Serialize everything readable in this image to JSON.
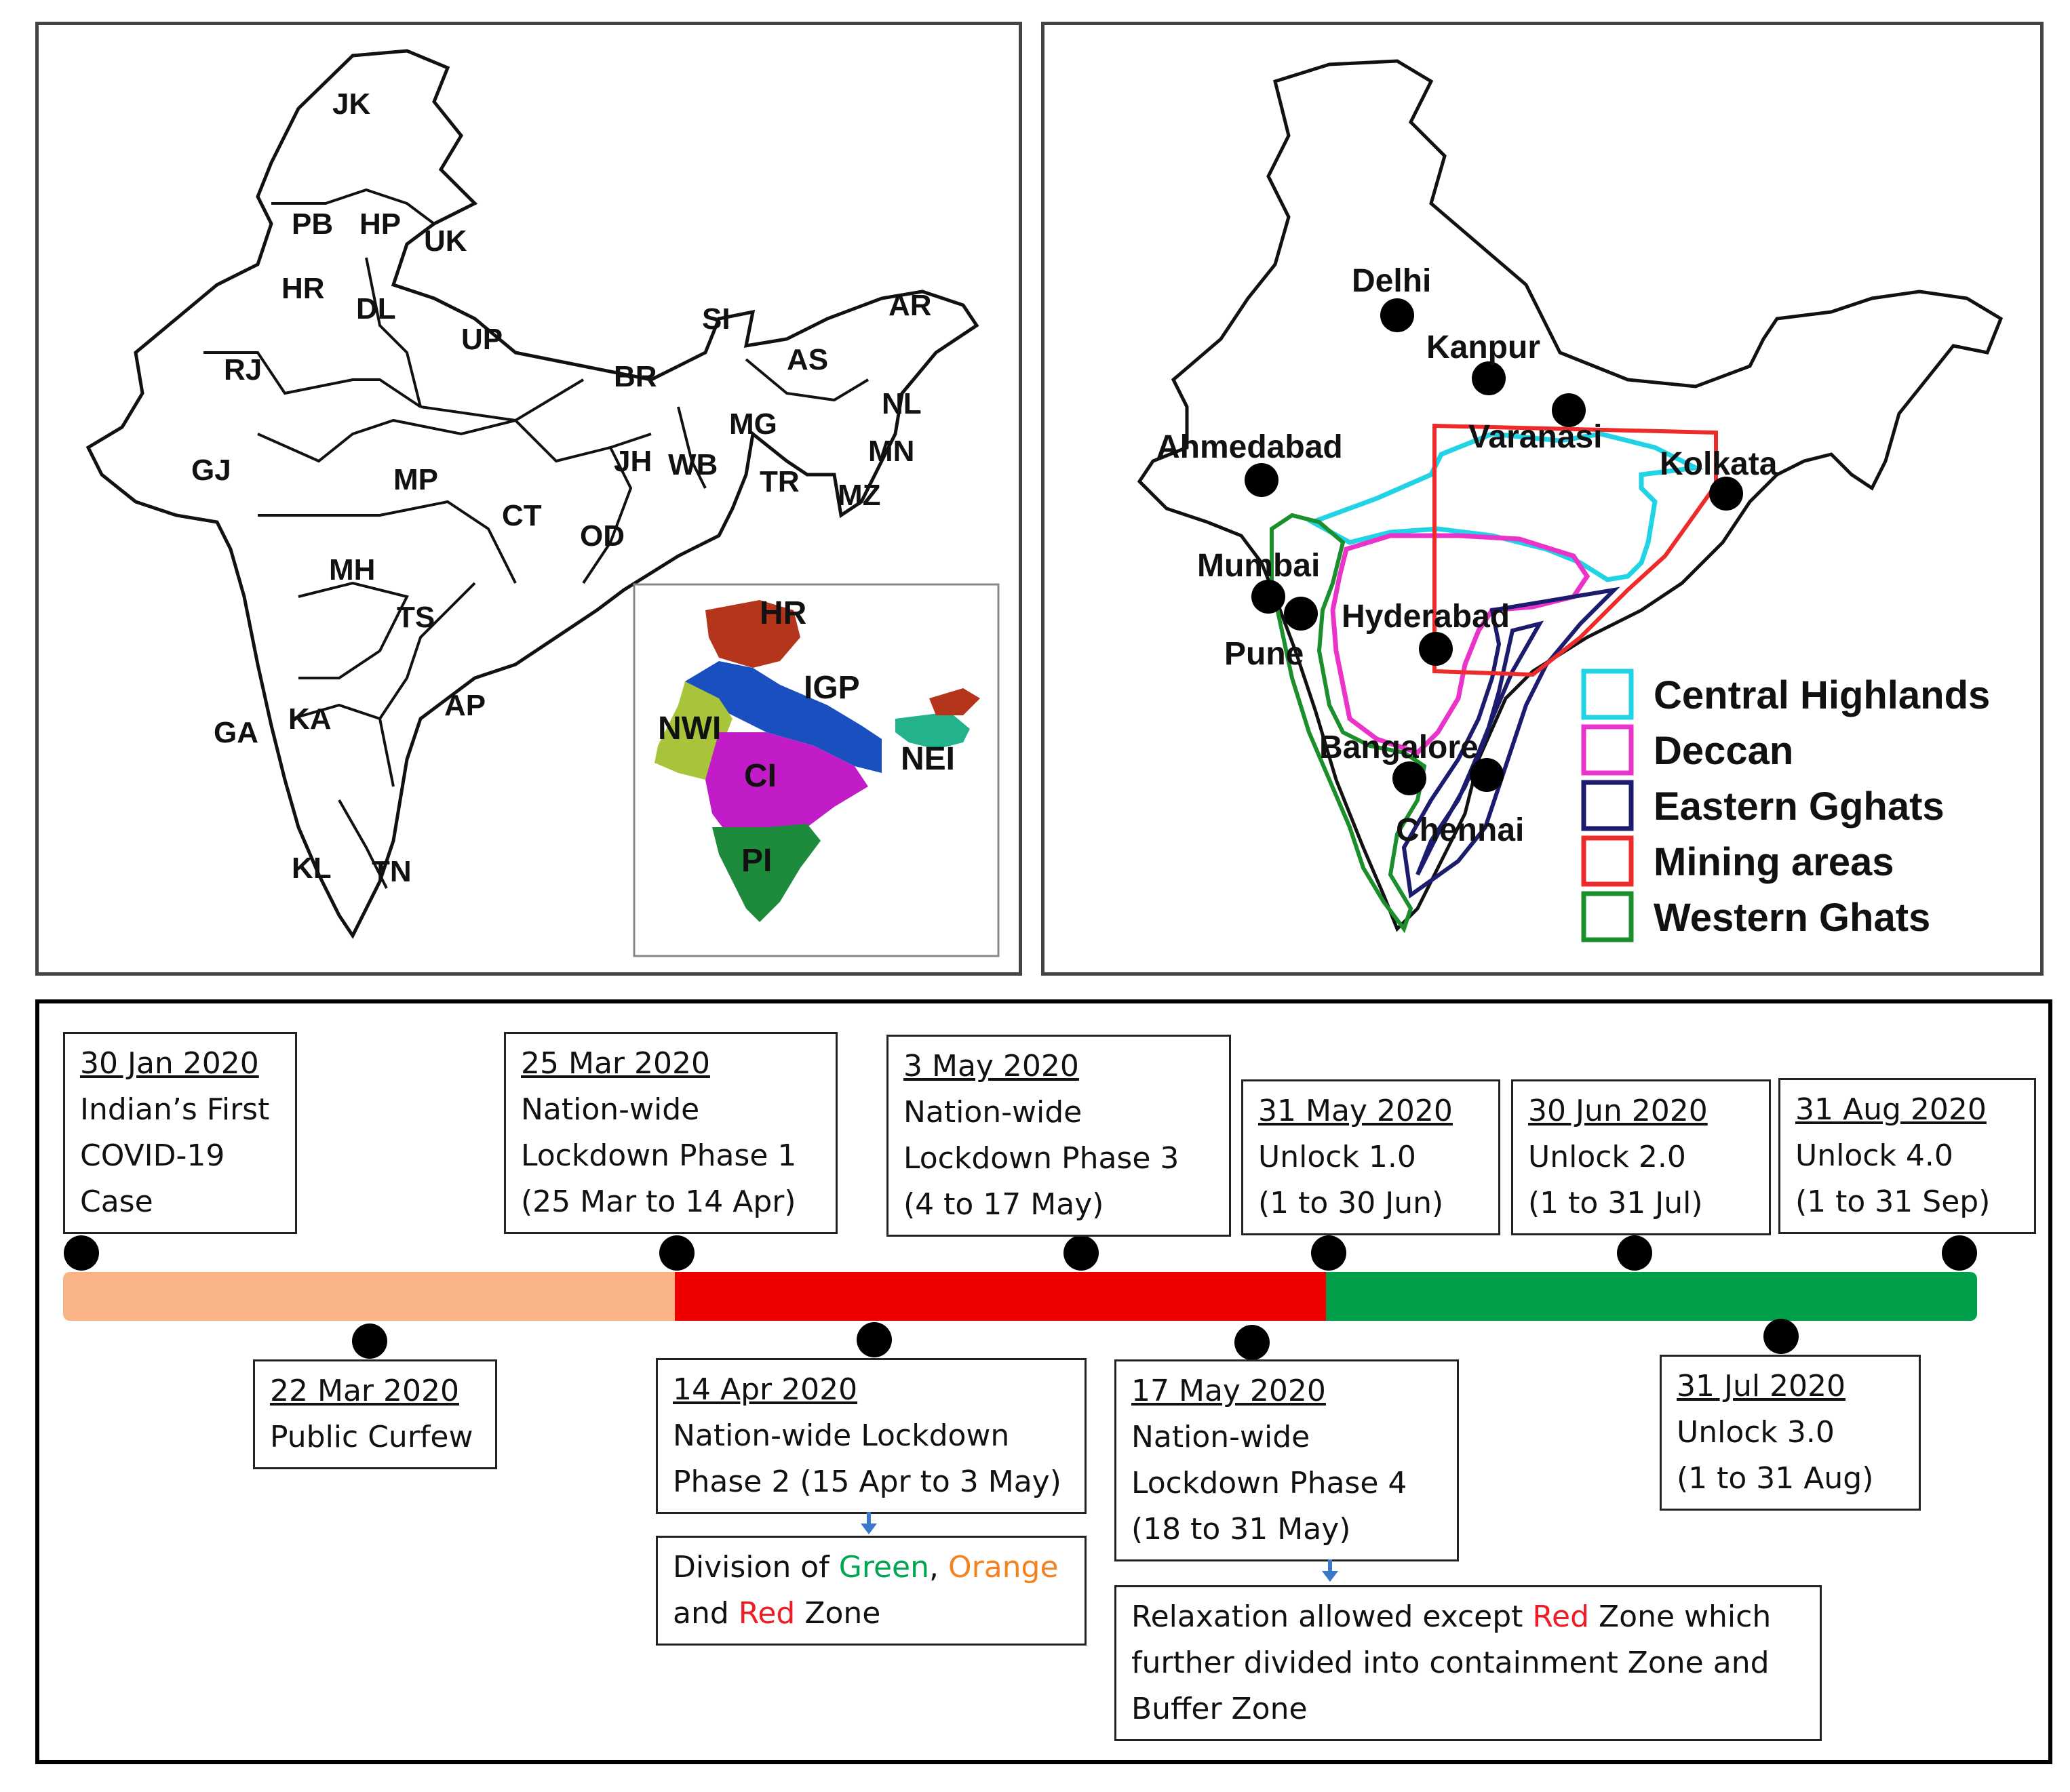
{
  "left_map": {
    "state_labels": [
      "JK",
      "PB",
      "HP",
      "UK",
      "HR",
      "DL",
      "UP",
      "RJ",
      "BR",
      "SI",
      "AR",
      "AS",
      "NL",
      "MG",
      "MN",
      "GJ",
      "MP",
      "JH",
      "WB",
      "TR",
      "MZ",
      "CT",
      "OD",
      "MH",
      "TS",
      "AP",
      "KA",
      "GA",
      "KL",
      "TN"
    ],
    "inset_region_labels": [
      "HR",
      "IGP",
      "NWI",
      "CI",
      "NEI",
      "PI"
    ],
    "inset_region_colors": {
      "HR": "#b5351c",
      "IGP": "#1a4fbf",
      "NWI": "#a8c43a",
      "CI": "#c21bc8",
      "NEI": "#22b38c",
      "PI": "#1e8a3c"
    }
  },
  "right_map": {
    "cities": [
      "Delhi",
      "Kanpur",
      "Varanasi",
      "Ahmedabad",
      "Kolkata",
      "Mumbai",
      "Hyderabad",
      "Pune",
      "Bangalore",
      "Chennai"
    ],
    "legend": [
      {
        "label": "Central Highlands",
        "color": "#22d3e6"
      },
      {
        "label": "Deccan",
        "color": "#ea33c8"
      },
      {
        "label": "Eastern Gghats",
        "color": "#1c1c6e"
      },
      {
        "label": "Mining areas",
        "color": "#ee2b2b"
      },
      {
        "label": "Western Ghats",
        "color": "#1b8f2b"
      }
    ]
  },
  "timeline": {
    "phase_colors": {
      "pre_lockdown": "#f9b384",
      "lockdown": "#ee0000",
      "unlock": "#00a04a"
    },
    "events": [
      {
        "date": "30 Jan  2020",
        "lines": [
          "Indian’s First",
          "COVID-19",
          "Case"
        ]
      },
      {
        "date": "22 Mar  2020",
        "lines": [
          "Public Curfew"
        ]
      },
      {
        "date": "25 Mar  2020",
        "lines": [
          "Nation-wide",
          "Lockdown Phase 1",
          "(25 Mar to 14 Apr)"
        ]
      },
      {
        "date": "14 Apr  2020",
        "lines": [
          "Nation-wide Lockdown",
          "Phase 2 (15 Apr to 3 May)"
        ]
      },
      {
        "date": "3 May  2020",
        "lines": [
          "Nation-wide",
          "Lockdown Phase 3",
          "(4 to 17 May)"
        ]
      },
      {
        "date": "17 May  2020",
        "lines": [
          "Nation-wide",
          "Lockdown Phase 4",
          "(18 to 31 May)"
        ]
      },
      {
        "date": "31 May  2020",
        "lines": [
          "Unlock 1.0",
          "(1 to 30 Jun)"
        ]
      },
      {
        "date": "30 Jun  2020",
        "lines": [
          "Unlock 2.0",
          "(1 to 31 Jul)"
        ]
      },
      {
        "date": "31 Jul  2020",
        "lines": [
          "Unlock 3.0",
          "(1 to 31 Aug)"
        ]
      },
      {
        "date": "31 Aug  2020",
        "lines": [
          "Unlock 4.0",
          "(1 to 31 Sep)"
        ]
      }
    ],
    "zone_note": {
      "t1": "Division of ",
      "green": "Green",
      "comma": ",",
      "orange": "Orange",
      "t2": "and ",
      "red": "Red",
      "t3": " Zone"
    },
    "relax_note": {
      "t1": "Relaxation allowed except ",
      "red": "Red",
      "t2": " Zone which",
      "line2": "further divided into containment Zone and",
      "line3": "Buffer Zone"
    }
  }
}
